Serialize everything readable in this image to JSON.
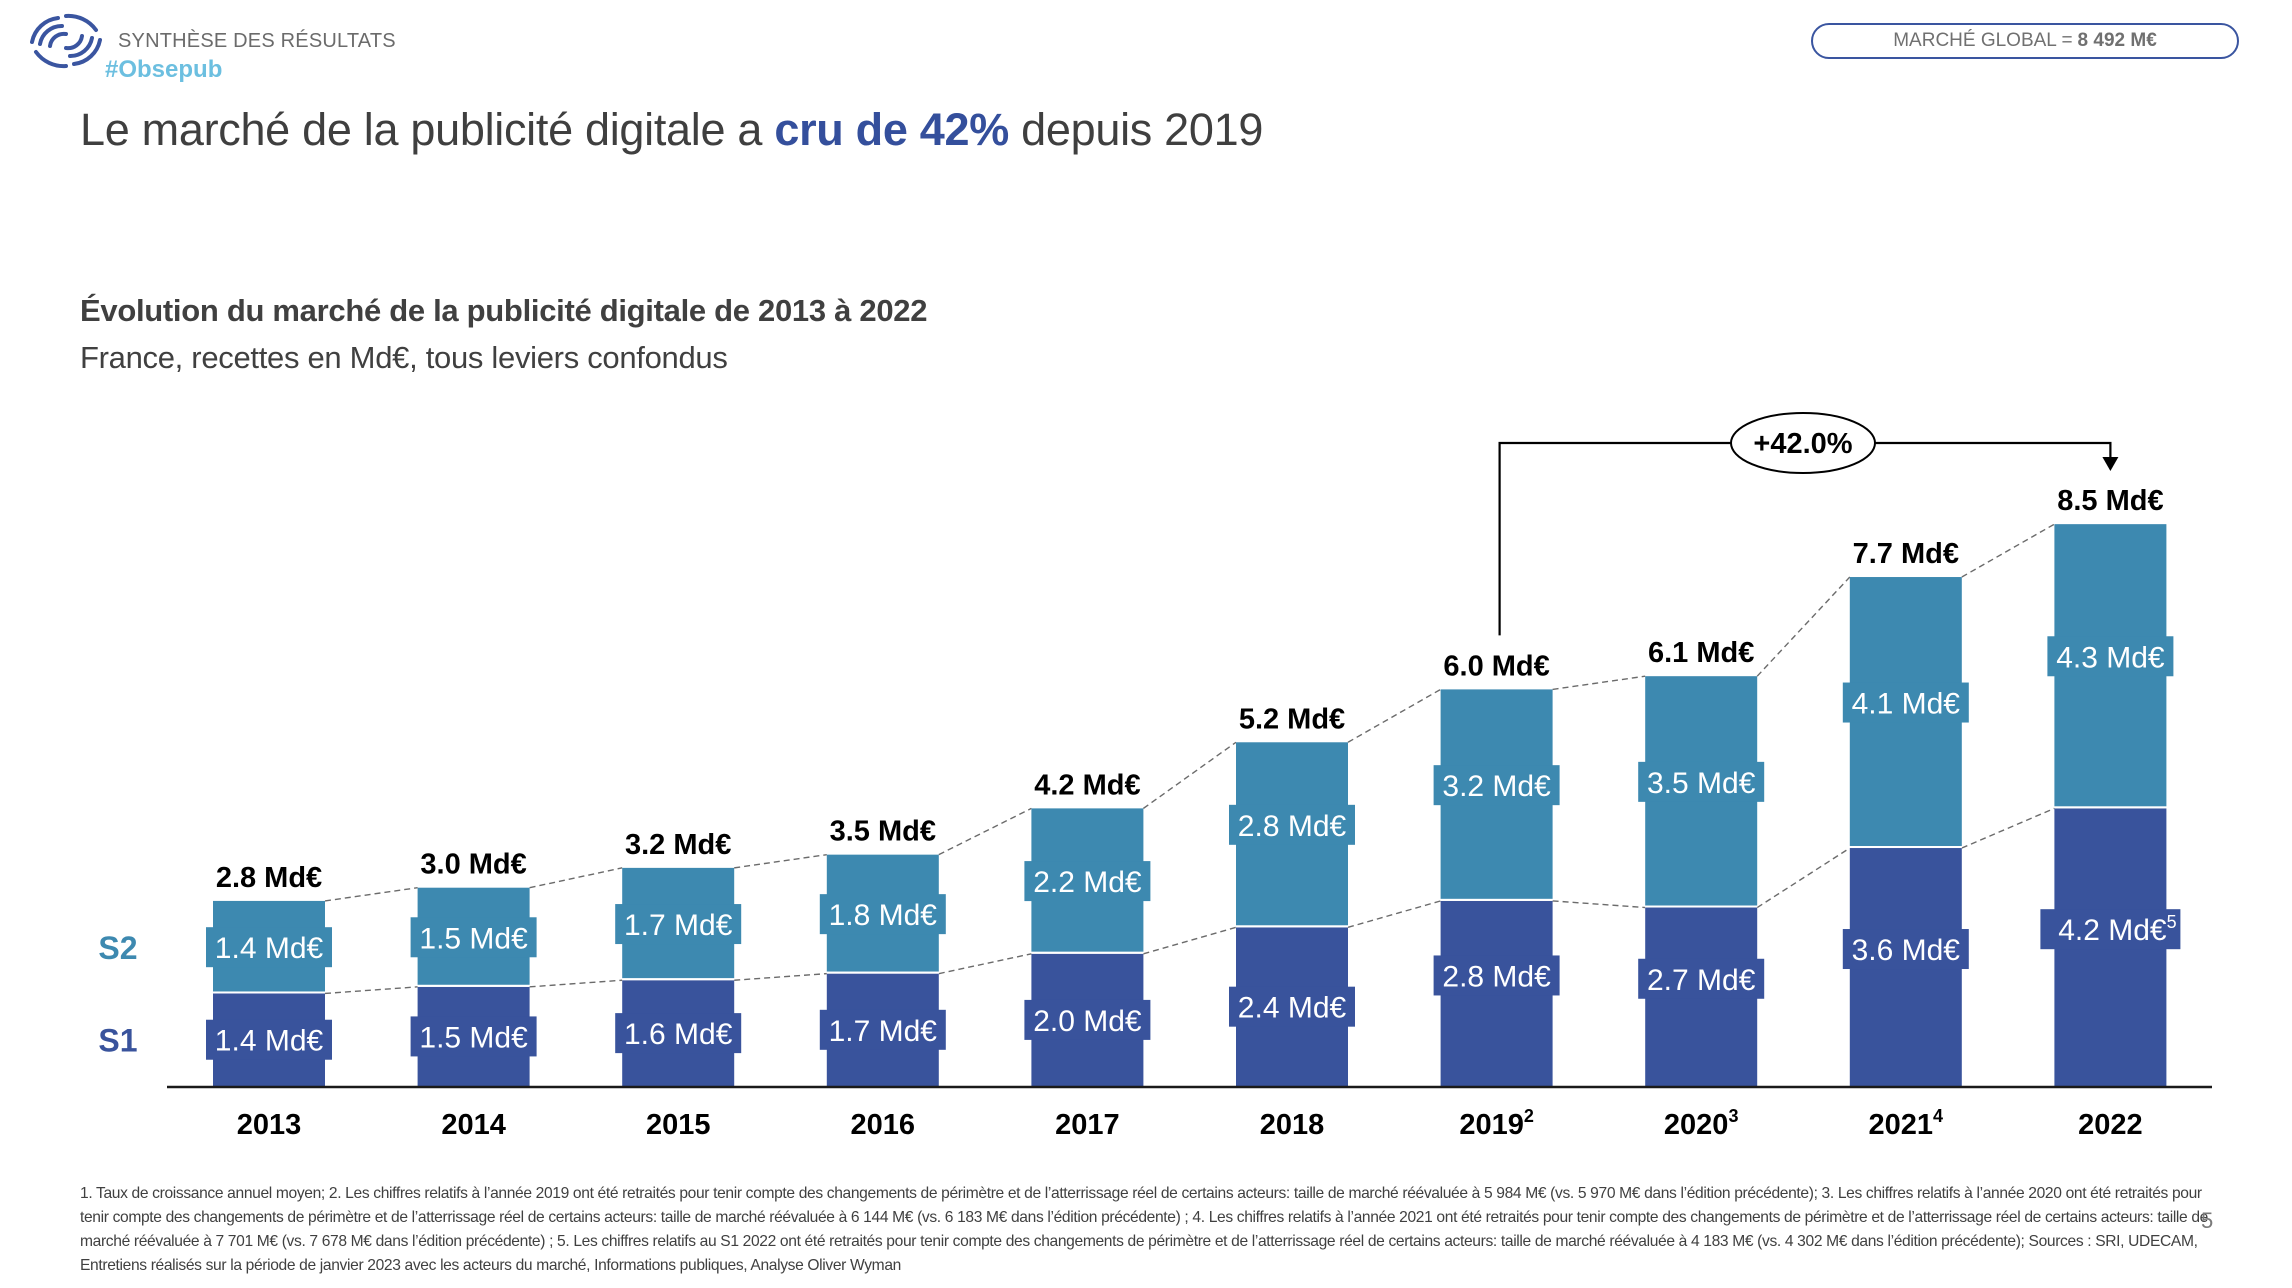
{
  "header": {
    "kicker": "SYNTHÈSE DES RÉSULTATS",
    "tag": "#Obsepub",
    "logo_icon": "obsepub-logo-icon",
    "badge_label": "MARCHÉ GLOBAL =",
    "badge_value": "8 492 M€"
  },
  "title": {
    "before": "Le marché de la publicité digitale a ",
    "highlight": "cru de 42%",
    "after": " depuis 2019",
    "highlight_color": "#344f9c"
  },
  "chart_data": {
    "type": "bar",
    "stacked": true,
    "title": "Évolution du marché de la publicité digitale de 2013 à 2022",
    "subtitle": "France, recettes en Md€, tous leviers confondus",
    "xlabel": "",
    "ylabel": "",
    "ylim": [
      0,
      9
    ],
    "grid": false,
    "unit": "Md€",
    "categories": [
      "2013",
      "2014",
      "2015",
      "2016",
      "2017",
      "2018",
      "2019",
      "2020",
      "2021",
      "2022"
    ],
    "category_superscripts": [
      "",
      "",
      "",
      "",
      "",
      "",
      "2",
      "3",
      "4",
      ""
    ],
    "series": [
      {
        "name": "S1",
        "color": "#39539c",
        "values": [
          1.4,
          1.5,
          1.6,
          1.7,
          2.0,
          2.4,
          2.8,
          2.7,
          3.6,
          4.2
        ],
        "labels": [
          "1.4 Md€",
          "1.5 Md€",
          "1.6 Md€",
          "1.7 Md€",
          "2.0 Md€",
          "2.4 Md€",
          "2.8 Md€",
          "2.7 Md€",
          "3.6 Md€",
          "4.2 Md€"
        ],
        "label_superscripts": [
          "",
          "",
          "",
          "",
          "",
          "",
          "",
          "",
          "",
          "5"
        ]
      },
      {
        "name": "S2",
        "color": "#3d89b0",
        "values": [
          1.4,
          1.5,
          1.7,
          1.8,
          2.2,
          2.8,
          3.2,
          3.5,
          4.1,
          4.3
        ],
        "labels": [
          "1.4 Md€",
          "1.5 Md€",
          "1.7 Md€",
          "1.8 Md€",
          "2.2 Md€",
          "2.8 Md€",
          "3.2 Md€",
          "3.5 Md€",
          "4.1 Md€",
          "4.3 Md€"
        ],
        "label_superscripts": [
          "",
          "",
          "",
          "",
          "",
          "",
          "",
          "",
          "",
          ""
        ]
      }
    ],
    "totals": [
      2.8,
      3.0,
      3.2,
      3.5,
      4.2,
      5.2,
      6.0,
      6.1,
      7.7,
      8.5
    ],
    "total_labels": [
      "2.8 Md€",
      "3.0 Md€",
      "3.2 Md€",
      "3.5 Md€",
      "4.2 Md€",
      "5.2 Md€",
      "6.0 Md€",
      "6.1 Md€",
      "7.7 Md€",
      "8.5 Md€"
    ],
    "legend": {
      "placement": "left",
      "entries": [
        "S2",
        "S1"
      ]
    },
    "annotations": [
      {
        "type": "growth-bracket",
        "from": "2019",
        "to": "2022",
        "text": "+42.0%"
      }
    ]
  },
  "footnotes": "1. Taux de croissance annuel moyen; 2. Les chiffres relatifs à l’année 2019 ont été retraités pour tenir compte des changements de périmètre et de l’atterrissage réel de certains acteurs: taille de marché réévaluée à 5 984 M€ (vs. 5 970 M€ dans l’édition précédente); 3. Les chiffres relatifs à l’année 2020 ont été retraités pour tenir compte des changements de périmètre et de l’atterrissage réel de certains acteurs: taille de marché réévaluée à 6 144 M€ (vs. 6 183 M€ dans l’édition précédente) ; 4. Les chiffres relatifs à l’année 2021 ont été retraités pour tenir compte des changements de périmètre et de l’atterrissage réel de certains acteurs: taille de marché réévaluée à 7 701 M€ (vs. 7 678 M€ dans l’édition précédente) ; 5. Les chiffres relatifs au S1 2022 ont été retraités pour tenir compte des changements de périmètre et de l’atterrissage réel de certains acteurs: taille de marché réévaluée à 4 183 M€ (vs. 4 302 M€ dans l’édition précédente); Sources : SRI, UDECAM, Entretiens réalisés sur la période de janvier 2023 avec les acteurs du marché, Informations publiques, Analyse Oliver Wyman",
  "page_number": "5"
}
